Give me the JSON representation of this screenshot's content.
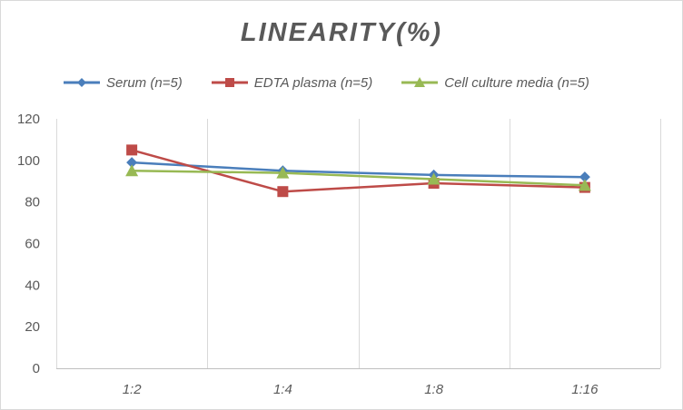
{
  "chart_data": {
    "type": "line",
    "title": "LINEARITY(%)",
    "xlabel": "",
    "ylabel": "",
    "categories": [
      "1:2",
      "1:4",
      "1:8",
      "1:16"
    ],
    "ylim": [
      0,
      120
    ],
    "yticks": [
      0,
      20,
      40,
      60,
      80,
      100,
      120
    ],
    "grid": "vertical",
    "legend": "top",
    "series": [
      {
        "name": "Serum (n=5)",
        "values": [
          99,
          95,
          93,
          92
        ],
        "color": "#4a7ebb",
        "marker": "diamond"
      },
      {
        "name": "EDTA plasma (n=5)",
        "values": [
          105,
          85,
          89,
          87
        ],
        "color": "#be4b48",
        "marker": "square"
      },
      {
        "name": "Cell culture media (n=5)",
        "values": [
          95,
          94,
          91,
          88
        ],
        "color": "#98b954",
        "marker": "triangle"
      }
    ]
  }
}
